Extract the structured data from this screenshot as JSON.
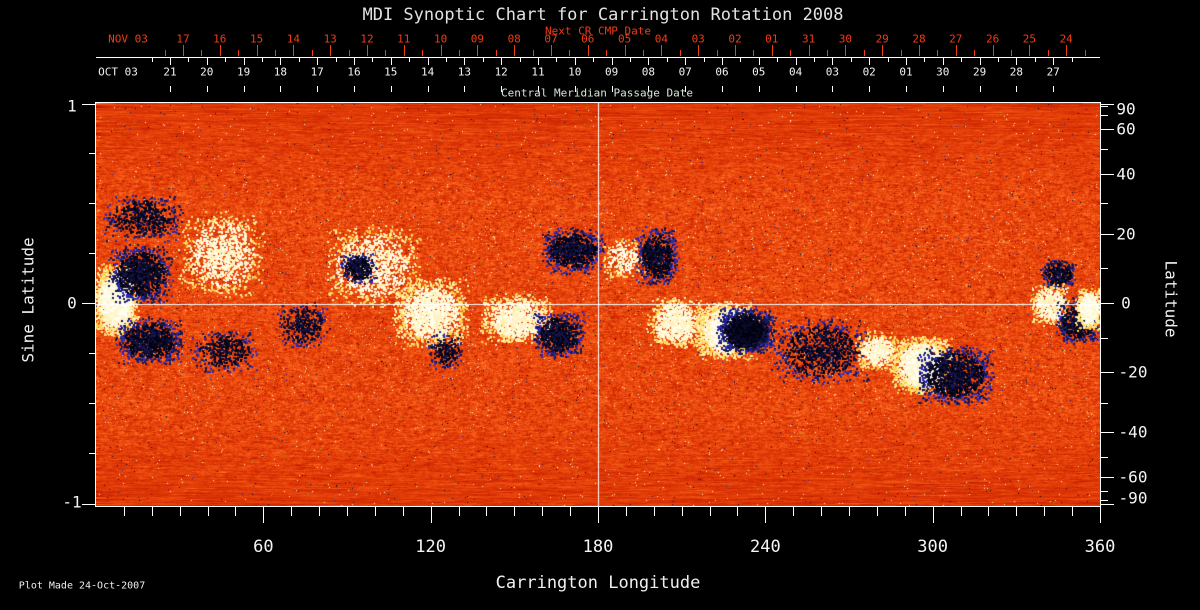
{
  "title": "MDI Synoptic Chart for Carrington Rotation 2008",
  "footer": {
    "plot_made": "Plot Made 24-Oct-2007"
  },
  "colors": {
    "background": "#000000",
    "red_axis": "#f43b14",
    "caption_green": "#d7e8d7",
    "axis_white": "#ffffff",
    "title_white": "#e2e2e2"
  },
  "top_axes": {
    "next_cr_label": "Next CR CMP Date",
    "red_month": "NOV 03",
    "red_days": [
      "17",
      "16",
      "15",
      "14",
      "13",
      "12",
      "11",
      "10",
      "09",
      "08",
      "07",
      "06",
      "05",
      "04",
      "03",
      "02",
      "01",
      "31",
      "30",
      "29",
      "28",
      "27",
      "26",
      "25",
      "24"
    ],
    "white_month": "OCT 03",
    "white_days": [
      "21",
      "20",
      "19",
      "18",
      "17",
      "16",
      "15",
      "14",
      "13",
      "12",
      "11",
      "10",
      "09",
      "08",
      "07",
      "06",
      "05",
      "04",
      "03",
      "02",
      "01",
      "30",
      "29",
      "28",
      "27"
    ],
    "caption": "Central Meridian Passage Date"
  },
  "bottom_axis": {
    "label": "Carrington Longitude",
    "major_ticks": [
      60,
      120,
      180,
      240,
      300,
      360
    ],
    "minor_step_deg": 10,
    "range": [
      0,
      360
    ]
  },
  "left_axis": {
    "label": "Sine Latitude",
    "ticks": [
      "1",
      "0",
      "-1"
    ]
  },
  "right_axis": {
    "label": "Latitude",
    "ticks": [
      90,
      60,
      40,
      20,
      0,
      -20,
      -40,
      -60,
      -90
    ],
    "minor_step_deg": 10
  },
  "chart_data": {
    "type": "heatmap",
    "title": "MDI Synoptic Chart for Carrington Rotation 2008",
    "description": "Solar photospheric magnetogram synoptic map: orange-red granular noise = weak field; white/cream patches = strong positive polarity; dark navy/black patches = strong negative polarity.",
    "xlabel": "Carrington Longitude",
    "x_range": [
      0,
      360
    ],
    "ylabel_left": "Sine Latitude",
    "y_range_sine": [
      -1,
      1
    ],
    "ylabel_right": "Latitude",
    "y_right_labels": [
      90,
      60,
      40,
      20,
      0,
      -20,
      -40,
      -60,
      -90
    ],
    "y_scale": "sine-latitude",
    "crosshair": {
      "longitude_deg": 180,
      "sine_latitude": 0
    },
    "noise_palette": [
      "#8c0800",
      "#be1c00",
      "#de3706",
      "#f25412",
      "#ff782e",
      "#ffa058"
    ],
    "fleck_colors": {
      "bright": [
        "#fff6d2",
        "#ffeeaa"
      ],
      "dark": [
        "#08081e",
        "#121246",
        "#242496"
      ],
      "olive": "#96a01e"
    },
    "positive_colors": [
      "#fffff2",
      "#fff6d0",
      "#ffefae",
      "#ffd24f"
    ],
    "negative_colors": [
      "#000010",
      "#0a0a26",
      "#16164e",
      "#2a2ab4"
    ],
    "active_regions": [
      {
        "lon": 7,
        "sin_lat": 0.02,
        "r_lon": 8.6,
        "r_sin": 0.19,
        "polarity": "positive",
        "strength": 3
      },
      {
        "lon": 16,
        "sin_lat": 0.15,
        "r_lon": 12.0,
        "r_sin": 0.15,
        "polarity": "negative",
        "strength": 2
      },
      {
        "lon": 19,
        "sin_lat": -0.18,
        "r_lon": 12.5,
        "r_sin": 0.12,
        "polarity": "negative",
        "strength": 2
      },
      {
        "lon": 17,
        "sin_lat": 0.43,
        "r_lon": 15.0,
        "r_sin": 0.12,
        "polarity": "negative",
        "strength": 1
      },
      {
        "lon": 45,
        "sin_lat": 0.25,
        "r_lon": 16.0,
        "r_sin": 0.22,
        "polarity": "positive",
        "strength": 1
      },
      {
        "lon": 46,
        "sin_lat": -0.23,
        "r_lon": 12.5,
        "r_sin": 0.11,
        "polarity": "negative",
        "strength": 1
      },
      {
        "lon": 74,
        "sin_lat": -0.1,
        "r_lon": 10.0,
        "r_sin": 0.12,
        "polarity": "negative",
        "strength": 1
      },
      {
        "lon": 99,
        "sin_lat": 0.19,
        "r_lon": 18.0,
        "r_sin": 0.21,
        "polarity": "positive",
        "strength": 1
      },
      {
        "lon": 94,
        "sin_lat": 0.18,
        "r_lon": 7.0,
        "r_sin": 0.08,
        "polarity": "negative",
        "strength": 2
      },
      {
        "lon": 120,
        "sin_lat": -0.04,
        "r_lon": 14.0,
        "r_sin": 0.18,
        "polarity": "positive",
        "strength": 2
      },
      {
        "lon": 125,
        "sin_lat": -0.23,
        "r_lon": 7.0,
        "r_sin": 0.1,
        "polarity": "negative",
        "strength": 1
      },
      {
        "lon": 151,
        "sin_lat": -0.07,
        "r_lon": 13.6,
        "r_sin": 0.13,
        "polarity": "positive",
        "strength": 2
      },
      {
        "lon": 166,
        "sin_lat": -0.15,
        "r_lon": 9.7,
        "r_sin": 0.12,
        "polarity": "negative",
        "strength": 2
      },
      {
        "lon": 171,
        "sin_lat": 0.27,
        "r_lon": 11.8,
        "r_sin": 0.12,
        "polarity": "negative",
        "strength": 2
      },
      {
        "lon": 189,
        "sin_lat": 0.23,
        "r_lon": 7.9,
        "r_sin": 0.11,
        "polarity": "positive",
        "strength": 1
      },
      {
        "lon": 201,
        "sin_lat": 0.24,
        "r_lon": 7.9,
        "r_sin": 0.15,
        "polarity": "negative",
        "strength": 2
      },
      {
        "lon": 208,
        "sin_lat": -0.09,
        "r_lon": 10.8,
        "r_sin": 0.13,
        "polarity": "positive",
        "strength": 2
      },
      {
        "lon": 226,
        "sin_lat": -0.13,
        "r_lon": 11.5,
        "r_sin": 0.15,
        "polarity": "positive",
        "strength": 3
      },
      {
        "lon": 233,
        "sin_lat": -0.13,
        "r_lon": 10.8,
        "r_sin": 0.12,
        "polarity": "negative",
        "strength": 3
      },
      {
        "lon": 260,
        "sin_lat": -0.23,
        "r_lon": 18.0,
        "r_sin": 0.17,
        "polarity": "negative",
        "strength": 1
      },
      {
        "lon": 280,
        "sin_lat": -0.23,
        "r_lon": 7.9,
        "r_sin": 0.1,
        "polarity": "positive",
        "strength": 2
      },
      {
        "lon": 296,
        "sin_lat": -0.3,
        "r_lon": 11.5,
        "r_sin": 0.15,
        "polarity": "positive",
        "strength": 3
      },
      {
        "lon": 308,
        "sin_lat": -0.35,
        "r_lon": 14.3,
        "r_sin": 0.15,
        "polarity": "negative",
        "strength": 2
      },
      {
        "lon": 345,
        "sin_lat": 0.15,
        "r_lon": 6.5,
        "r_sin": 0.08,
        "polarity": "negative",
        "strength": 2
      },
      {
        "lon": 342,
        "sin_lat": 0.0,
        "r_lon": 7.2,
        "r_sin": 0.11,
        "polarity": "positive",
        "strength": 2
      },
      {
        "lon": 352,
        "sin_lat": -0.08,
        "r_lon": 8.2,
        "r_sin": 0.12,
        "polarity": "negative",
        "strength": 2
      },
      {
        "lon": 356,
        "sin_lat": -0.02,
        "r_lon": 5.0,
        "r_sin": 0.11,
        "polarity": "positive",
        "strength": 3
      }
    ]
  }
}
